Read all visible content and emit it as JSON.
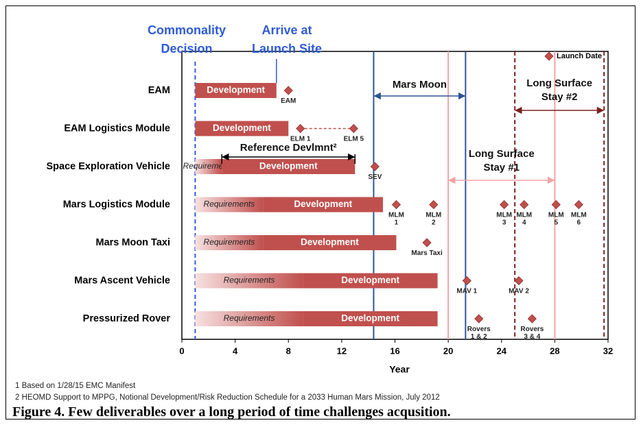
{
  "chart_data": {
    "type": "gantt",
    "caption": "Figure 4. Few deliverables over a long period of time challenges acqusition.",
    "xlabel": "Year",
    "xlim": [
      0,
      32
    ],
    "xticks": [
      0,
      4,
      8,
      12,
      16,
      20,
      24,
      28,
      32
    ],
    "bar_color": "#c0504d",
    "fade_color": "#f7e0e0",
    "launch_color": "#c0504d",
    "legend": {
      "label": "Launch Date",
      "position": "upper right"
    },
    "rows": [
      {
        "name": "EAM",
        "bars": [
          {
            "label": "Development",
            "start": 1,
            "end": 7.1
          }
        ],
        "launches": [
          {
            "label": [
              "EAM"
            ],
            "x": 8
          }
        ]
      },
      {
        "name": "EAM Logistics Module",
        "bars": [
          {
            "label": "Development",
            "start": 1,
            "end": 8
          }
        ],
        "launches": [
          {
            "label": [
              "ELM 1"
            ],
            "x": 8.9
          },
          {
            "label": [
              "ELM 5"
            ],
            "x": 12.9
          }
        ],
        "link": true
      },
      {
        "name": "Space Exploration Vehicle",
        "bars": [
          {
            "label": "Requirements",
            "start": 1,
            "end": 3,
            "fade": true
          },
          {
            "label": "Development",
            "start": 3,
            "end": 13
          }
        ],
        "launches": [
          {
            "label": [
              "SEV"
            ],
            "x": 14.5
          }
        ]
      },
      {
        "name": "Mars Logistics Module",
        "bars": [
          {
            "label": "Requirements",
            "start": 1,
            "end": 6.1,
            "fade": true
          },
          {
            "label": "Development",
            "start": 6.1,
            "end": 15.1
          }
        ],
        "launches": [
          {
            "label": [
              "MLM",
              "1"
            ],
            "x": 16.1
          },
          {
            "label": [
              "MLM",
              "2"
            ],
            "x": 18.9
          },
          {
            "label": [
              "MLM",
              "3"
            ],
            "x": 24.2
          },
          {
            "label": [
              "MLM",
              "4"
            ],
            "x": 25.7
          },
          {
            "label": [
              "MLM",
              "5"
            ],
            "x": 28.1
          },
          {
            "label": [
              "MLM",
              "6"
            ],
            "x": 29.8
          }
        ]
      },
      {
        "name": "Mars Moon Taxi",
        "bars": [
          {
            "label": "Requirements",
            "start": 1,
            "end": 6.1,
            "fade": true
          },
          {
            "label": "Development",
            "start": 6.1,
            "end": 16.1
          }
        ],
        "launches": [
          {
            "label": [
              "Mars Taxi"
            ],
            "x": 18.4
          }
        ]
      },
      {
        "name": "Mars Ascent Vehicle",
        "bars": [
          {
            "label": "Requirements",
            "start": 1,
            "end": 9.1,
            "fade": true
          },
          {
            "label": "Development",
            "start": 9.1,
            "end": 19.2
          }
        ],
        "launches": [
          {
            "label": [
              "MAV 1"
            ],
            "x": 21.4
          },
          {
            "label": [
              "MAV 2"
            ],
            "x": 25.3
          }
        ]
      },
      {
        "name": "Pressurized Rover",
        "bars": [
          {
            "label": "Requirements",
            "start": 1,
            "end": 9.1,
            "fade": true
          },
          {
            "label": "Development",
            "start": 9.1,
            "end": 19.2
          }
        ],
        "launches": [
          {
            "label": [
              "Rovers",
              "1 & 2"
            ],
            "x": 22.3
          },
          {
            "label": [
              "Rovers",
              "3 & 4"
            ],
            "x": 26.3
          }
        ]
      }
    ],
    "reference_lines": [
      {
        "x": 1,
        "color": "#2f5bd6",
        "dashed": true
      },
      {
        "x": 20,
        "color": "#f4a3a3"
      },
      {
        "x": 28,
        "color": "#f4a3a3"
      },
      {
        "x": 14.4,
        "color": "#2f5597"
      },
      {
        "x": 21.3,
        "color": "#2f5597"
      },
      {
        "x": 25,
        "color": "#7b2020",
        "dashed": true
      },
      {
        "x": 31.7,
        "color": "#7b2020",
        "dashed": true
      }
    ],
    "spans": [
      {
        "label": [
          "Mars Moon"
        ],
        "start": 14.4,
        "end": 21.3,
        "color": "#2f5597"
      },
      {
        "label": [
          "Long Surface",
          "Stay #1"
        ],
        "start": 20,
        "end": 28,
        "color": "#f4a3a3"
      },
      {
        "label": [
          "Long Surface",
          "Stay #2"
        ],
        "start": 25,
        "end": 31.7,
        "color": "#7b2020"
      },
      {
        "label": [
          "Reference Devlmnt²"
        ],
        "start": 3,
        "end": 13,
        "color": "#000000",
        "bracket": true
      }
    ],
    "annotations": [
      {
        "label": [
          "Commonality",
          "Decision"
        ],
        "color": "#2f5bd6"
      },
      {
        "label": [
          "Arrive at",
          "Launch Site"
        ],
        "color": "#2f5bd6"
      }
    ],
    "footnotes": [
      "1 Based on 1/28/15 EMC Manifest",
      "2 HEOMD Support to MPPG, Notional  Development/Risk Reduction Schedule for a 2033 Human Mars Mission, July 2012"
    ]
  }
}
